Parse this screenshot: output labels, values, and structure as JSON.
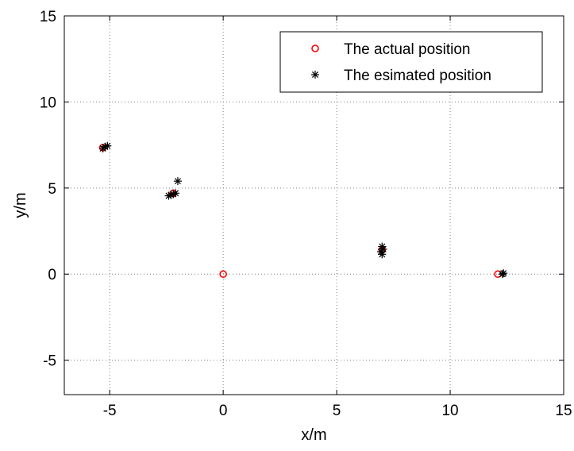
{
  "chart_data": {
    "type": "scatter",
    "title": "",
    "xlabel": "x/m",
    "ylabel": "y/m",
    "xlim": [
      -7,
      15
    ],
    "ylim": [
      -7,
      15
    ],
    "xticks": [
      -5,
      0,
      5,
      10,
      15
    ],
    "yticks": [
      -5,
      0,
      5,
      10,
      15
    ],
    "xtick_labels": [
      "-5",
      "0",
      "5",
      "10",
      "15"
    ],
    "ytick_labels": [
      "-5",
      "0",
      "5",
      "10",
      "15"
    ],
    "grid": true,
    "legend_position": "top-right",
    "series": [
      {
        "name": "The actual position",
        "marker": "circle",
        "color": "#ff0000",
        "points": [
          {
            "x": -5.3,
            "y": 7.35
          },
          {
            "x": -2.2,
            "y": 4.7
          },
          {
            "x": 0.0,
            "y": 0.0
          },
          {
            "x": 7.0,
            "y": 1.4
          },
          {
            "x": 12.1,
            "y": 0.0
          }
        ]
      },
      {
        "name": "The esimated position",
        "marker": "asterisk",
        "color": "#000000",
        "points": [
          {
            "x": -5.2,
            "y": 7.4
          },
          {
            "x": -5.1,
            "y": 7.45
          },
          {
            "x": -5.3,
            "y": 7.3
          },
          {
            "x": -2.4,
            "y": 4.55
          },
          {
            "x": -2.3,
            "y": 4.6
          },
          {
            "x": -2.2,
            "y": 4.65
          },
          {
            "x": -2.1,
            "y": 4.7
          },
          {
            "x": -2.0,
            "y": 5.4
          },
          {
            "x": 7.0,
            "y": 1.6
          },
          {
            "x": 7.05,
            "y": 1.45
          },
          {
            "x": 6.95,
            "y": 1.3
          },
          {
            "x": 7.0,
            "y": 1.15
          },
          {
            "x": 12.3,
            "y": 0.0
          },
          {
            "x": 12.35,
            "y": 0.05
          }
        ]
      }
    ]
  }
}
